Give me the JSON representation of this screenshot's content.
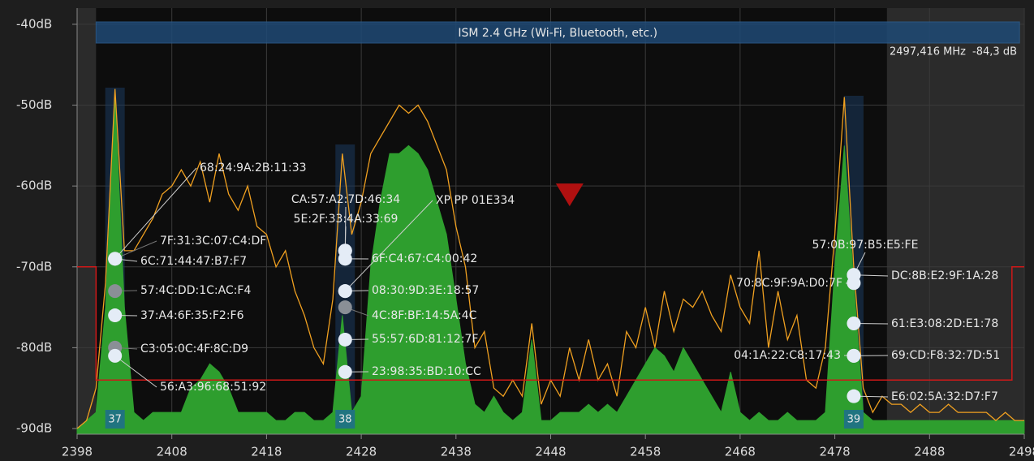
{
  "chart_data": {
    "type": "spectrum",
    "xlim": [
      2398,
      2498
    ],
    "ylim": [
      -90.7,
      -38
    ],
    "xticks": [
      2398,
      2408,
      2418,
      2428,
      2438,
      2448,
      2458,
      2468,
      2478,
      2488,
      2498
    ],
    "yticks": [
      {
        "value": -40,
        "label": "-40dB"
      },
      {
        "value": -50,
        "label": "-50dB"
      },
      {
        "value": -60,
        "label": "-60dB"
      },
      {
        "value": -70,
        "label": "-70dB"
      },
      {
        "value": -80,
        "label": "-80dB"
      },
      {
        "value": -90,
        "label": "-90dB"
      }
    ],
    "grid": true,
    "active_range": [
      2400,
      2483.5
    ],
    "band": {
      "label": "ISM 2.4 GHz (Wi-Fi, Bluetooth, etc.)",
      "range": [
        2400,
        2497.5
      ],
      "color": "#1f4a75"
    },
    "readout": {
      "frequency": "2497,416 MHz",
      "level": "-84,3 dB"
    },
    "marker": {
      "x": 2450,
      "y": -62.5,
      "color": "#b01010"
    },
    "threshold": {
      "color": "#d01818",
      "x": [
        2398,
        2400,
        2400,
        2496.7,
        2496.7,
        2498
      ],
      "y": [
        -70,
        -70,
        -84,
        -84,
        -70,
        -70
      ]
    },
    "x": [
      2398,
      2399,
      2400,
      2401,
      2402,
      2403,
      2404,
      2405,
      2406,
      2407,
      2408,
      2409,
      2410,
      2411,
      2412,
      2413,
      2414,
      2415,
      2416,
      2417,
      2418,
      2419,
      2420,
      2421,
      2422,
      2423,
      2424,
      2425,
      2426,
      2427,
      2428,
      2429,
      2430,
      2431,
      2432,
      2433,
      2434,
      2435,
      2436,
      2437,
      2438,
      2439,
      2440,
      2441,
      2442,
      2443,
      2444,
      2445,
      2446,
      2447,
      2448,
      2449,
      2450,
      2451,
      2452,
      2453,
      2454,
      2455,
      2456,
      2457,
      2458,
      2459,
      2460,
      2461,
      2462,
      2463,
      2464,
      2465,
      2466,
      2467,
      2468,
      2469,
      2470,
      2471,
      2472,
      2473,
      2474,
      2475,
      2476,
      2477,
      2478,
      2479,
      2480,
      2481,
      2482,
      2483,
      2484,
      2485,
      2486,
      2487,
      2488,
      2489,
      2490,
      2491,
      2492,
      2493,
      2494,
      2495,
      2496,
      2497,
      2498
    ],
    "series": [
      {
        "color": "#2e9e2e",
        "fill": true,
        "values": [
          -90,
          -89,
          -88,
          -75,
          -49,
          -75,
          -88,
          -89,
          -88,
          -88,
          -88,
          -88,
          -85,
          -84,
          -82,
          -83,
          -85,
          -88,
          -88,
          -88,
          -88,
          -89,
          -89,
          -88,
          -88,
          -89,
          -89,
          -88,
          -76,
          -88,
          -86,
          -70,
          -62,
          -56,
          -56,
          -55,
          -56,
          -58,
          -62,
          -66,
          -74,
          -82,
          -87,
          -88,
          -86,
          -88,
          -89,
          -88,
          -79,
          -89,
          -89,
          -88,
          -88,
          -88,
          -87,
          -88,
          -87,
          -88,
          -86,
          -84,
          -82,
          -80,
          -81,
          -83,
          -80,
          -82,
          -84,
          -86,
          -88,
          -83,
          -88,
          -89,
          -88,
          -89,
          -89,
          -88,
          -89,
          -89,
          -89,
          -88,
          -70,
          -55,
          -72,
          -88,
          -89,
          -89,
          -89,
          -89,
          -89,
          -89,
          -89,
          -89,
          -89,
          -89,
          -89,
          -89,
          -89,
          -89,
          -89,
          -89,
          -89
        ]
      },
      {
        "color": "#f0a020",
        "fill": false,
        "values": [
          -90,
          -89,
          -85,
          -72,
          -48,
          -68,
          -68,
          -66,
          -64,
          -61,
          -60,
          -58,
          -60,
          -57,
          -62,
          -56,
          -61,
          -63,
          -60,
          -65,
          -66,
          -70,
          -68,
          -73,
          -76,
          -80,
          -82,
          -74,
          -56,
          -66,
          -62,
          -56,
          -54,
          -52,
          -50,
          -51,
          -50,
          -52,
          -55,
          -58,
          -65,
          -70,
          -80,
          -78,
          -85,
          -86,
          -84,
          -86,
          -77,
          -87,
          -84,
          -86,
          -80,
          -84,
          -79,
          -84,
          -82,
          -86,
          -78,
          -80,
          -75,
          -80,
          -73,
          -78,
          -74,
          -75,
          -73,
          -76,
          -78,
          -71,
          -75,
          -77,
          -68,
          -80,
          -73,
          -79,
          -76,
          -84,
          -85,
          -80,
          -66,
          -49,
          -70,
          -85,
          -88,
          -86,
          -87,
          -87,
          -88,
          -87,
          -88,
          -88,
          -87,
          -88,
          -88,
          -88,
          -88,
          -89,
          -88,
          -89,
          -89
        ]
      }
    ],
    "channels": [
      {
        "label": "37",
        "x": 2402,
        "devices": [
          {
            "name": "68:24:9A:2B:11:33",
            "y": -69
          },
          {
            "name": "7F:31:3C:07:C4:DF",
            "y": -69,
            "faded": true
          },
          {
            "name": "6C:71:44:47:B7:F7",
            "y": -69
          },
          {
            "name": "57:4C:DD:1C:AC:F4",
            "y": -73,
            "faded": true
          },
          {
            "name": "37:A4:6F:35:F2:F6",
            "y": -76
          },
          {
            "name": "C3:05:0C:4F:8C:D9",
            "y": -80,
            "faded": true
          },
          {
            "name": "56:A3:96:68:51:92",
            "y": -81
          }
        ]
      },
      {
        "label": "38",
        "x": 2426.3,
        "devices": [
          {
            "name": "CA:57:A2:7D:46:34",
            "y": -68
          },
          {
            "name": "5E:2F:33:4A:33:69",
            "y": -68
          },
          {
            "name": "XP PP 01E334",
            "y": -73
          },
          {
            "name": "6F:C4:67:C4:00:42",
            "y": -69
          },
          {
            "name": "08:30:9D:3E:18:57",
            "y": -73
          },
          {
            "name": "4C:8F:BF:14:5A:4C",
            "y": -75,
            "faded": true
          },
          {
            "name": "55:57:6D:81:12:7F",
            "y": -79
          },
          {
            "name": "23:98:35:BD:10:CC",
            "y": -83
          }
        ]
      },
      {
        "label": "39",
        "x": 2480,
        "devices": [
          {
            "name": "57:0B:97:B5:E5:FE",
            "y": -71
          },
          {
            "name": "DC:8B:E2:9F:1A:28",
            "y": -71
          },
          {
            "name": "70:8C:9F:9A:D0:7F",
            "y": -72
          },
          {
            "name": "61:E3:08:2D:E1:78",
            "y": -77
          },
          {
            "name": "04:1A:22:C8:17:43",
            "y": -81
          },
          {
            "name": "69:CD:F8:32:7D:51",
            "y": -81
          },
          {
            "name": "E6:02:5A:32:D7:F7",
            "y": -86
          }
        ]
      }
    ]
  }
}
